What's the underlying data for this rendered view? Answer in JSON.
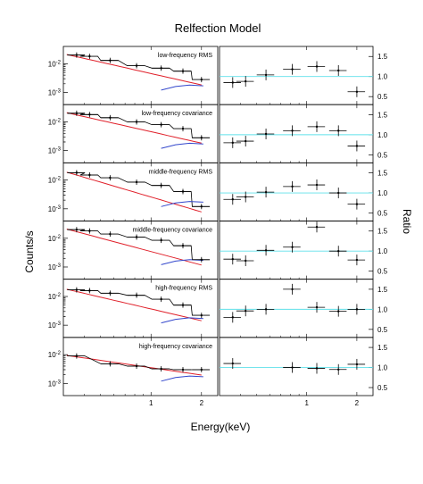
{
  "chart_data": {
    "type": "line",
    "title": "Relfection Model",
    "xlabel": "Energy(keV)",
    "ylabel_left": "Counts/s",
    "ylabel_right": "Ratio",
    "x_scale": "log",
    "x_range_keV": [
      0.3,
      2.5
    ],
    "x_tick_labels": [
      "1",
      "2"
    ],
    "left_y_scale": "log",
    "left_y_range": [
      0.0005,
      0.03
    ],
    "left_y_tick_labels": [
      "10^-2",
      "10^-3"
    ],
    "right_y_range": [
      0.3,
      1.75
    ],
    "right_y_tick_labels": [
      "0.5",
      "1.0",
      "1.5"
    ],
    "reference_line": 1.0,
    "colors": {
      "data": "#000000",
      "total_model": "#000000",
      "reflection": "#e0202a",
      "blue_component": "#3347cc",
      "reference": "#5fe0ea"
    },
    "panels": [
      {
        "label": "low-frequency RMS",
        "counts": [
          {
            "x": 0.36,
            "y": 0.02
          },
          {
            "x": 0.43,
            "y": 0.018
          },
          {
            "x": 0.57,
            "y": 0.013
          },
          {
            "x": 0.82,
            "y": 0.0085
          },
          {
            "x": 1.15,
            "y": 0.007
          },
          {
            "x": 1.55,
            "y": 0.0055
          },
          {
            "x": 2.0,
            "y": 0.0028
          }
        ],
        "ratio": [
          {
            "x": 0.36,
            "y": 0.85
          },
          {
            "x": 0.43,
            "y": 0.88
          },
          {
            "x": 0.57,
            "y": 1.04
          },
          {
            "x": 0.82,
            "y": 1.18
          },
          {
            "x": 1.15,
            "y": 1.25
          },
          {
            "x": 1.55,
            "y": 1.15
          },
          {
            "x": 2.0,
            "y": 0.62
          }
        ]
      },
      {
        "label": "low-frequency covariance",
        "counts": [
          {
            "x": 0.36,
            "y": 0.02
          },
          {
            "x": 0.43,
            "y": 0.018
          },
          {
            "x": 0.57,
            "y": 0.014
          },
          {
            "x": 0.82,
            "y": 0.01
          },
          {
            "x": 1.15,
            "y": 0.008
          },
          {
            "x": 1.55,
            "y": 0.0058
          },
          {
            "x": 2.0,
            "y": 0.0028
          }
        ],
        "ratio": [
          {
            "x": 0.36,
            "y": 0.8
          },
          {
            "x": 0.43,
            "y": 0.84
          },
          {
            "x": 0.57,
            "y": 1.02
          },
          {
            "x": 0.82,
            "y": 1.1
          },
          {
            "x": 1.15,
            "y": 1.2
          },
          {
            "x": 1.55,
            "y": 1.1
          },
          {
            "x": 2.0,
            "y": 0.72
          }
        ]
      },
      {
        "label": "middle-frequency RMS",
        "counts": [
          {
            "x": 0.36,
            "y": 0.018
          },
          {
            "x": 0.43,
            "y": 0.015
          },
          {
            "x": 0.57,
            "y": 0.012
          },
          {
            "x": 0.82,
            "y": 0.0085
          },
          {
            "x": 1.15,
            "y": 0.0065
          },
          {
            "x": 1.55,
            "y": 0.004
          },
          {
            "x": 2.0,
            "y": 0.0012
          }
        ],
        "ratio": [
          {
            "x": 0.36,
            "y": 0.84
          },
          {
            "x": 0.43,
            "y": 0.9
          },
          {
            "x": 0.57,
            "y": 1.02
          },
          {
            "x": 0.82,
            "y": 1.16
          },
          {
            "x": 1.15,
            "y": 1.2
          },
          {
            "x": 1.55,
            "y": 1.0
          },
          {
            "x": 2.0,
            "y": 0.72
          }
        ]
      },
      {
        "label": "middle-frequency covariance",
        "counts": [
          {
            "x": 0.36,
            "y": 0.02
          },
          {
            "x": 0.43,
            "y": 0.018
          },
          {
            "x": 0.57,
            "y": 0.014
          },
          {
            "x": 0.82,
            "y": 0.011
          },
          {
            "x": 1.15,
            "y": 0.0085
          },
          {
            "x": 1.55,
            "y": 0.0055
          },
          {
            "x": 2.0,
            "y": 0.0018
          }
        ],
        "ratio": [
          {
            "x": 0.36,
            "y": 0.8
          },
          {
            "x": 0.43,
            "y": 0.76
          },
          {
            "x": 0.57,
            "y": 1.02
          },
          {
            "x": 0.82,
            "y": 1.1
          },
          {
            "x": 1.15,
            "y": 1.6
          },
          {
            "x": 1.55,
            "y": 1.0
          },
          {
            "x": 2.0,
            "y": 0.78
          }
        ]
      },
      {
        "label": "high-frequency RMS",
        "counts": [
          {
            "x": 0.36,
            "y": 0.017
          },
          {
            "x": 0.43,
            "y": 0.016
          },
          {
            "x": 0.57,
            "y": 0.013
          },
          {
            "x": 0.82,
            "y": 0.011
          },
          {
            "x": 1.15,
            "y": 0.008
          },
          {
            "x": 1.55,
            "y": 0.005
          },
          {
            "x": 2.0,
            "y": 0.0022
          }
        ],
        "ratio": [
          {
            "x": 0.36,
            "y": 0.8
          },
          {
            "x": 0.43,
            "y": 0.96
          },
          {
            "x": 0.57,
            "y": 1.0
          },
          {
            "x": 0.82,
            "y": 1.5
          },
          {
            "x": 1.15,
            "y": 1.05
          },
          {
            "x": 1.55,
            "y": 0.95
          },
          {
            "x": 2.0,
            "y": 1.0
          }
        ]
      },
      {
        "label": "high-frequency covariance",
        "counts": [
          {
            "x": 0.36,
            "y": 0.009
          },
          {
            "x": 0.57,
            "y": 0.0048
          },
          {
            "x": 0.82,
            "y": 0.004
          },
          {
            "x": 1.15,
            "y": 0.0032
          },
          {
            "x": 1.55,
            "y": 0.003
          },
          {
            "x": 2.0,
            "y": 0.003
          }
        ],
        "ratio": [
          {
            "x": 0.36,
            "y": 1.1
          },
          {
            "x": 0.82,
            "y": 1.0
          },
          {
            "x": 1.15,
            "y": 0.98
          },
          {
            "x": 1.55,
            "y": 0.95
          },
          {
            "x": 2.0,
            "y": 1.08
          }
        ]
      }
    ]
  }
}
